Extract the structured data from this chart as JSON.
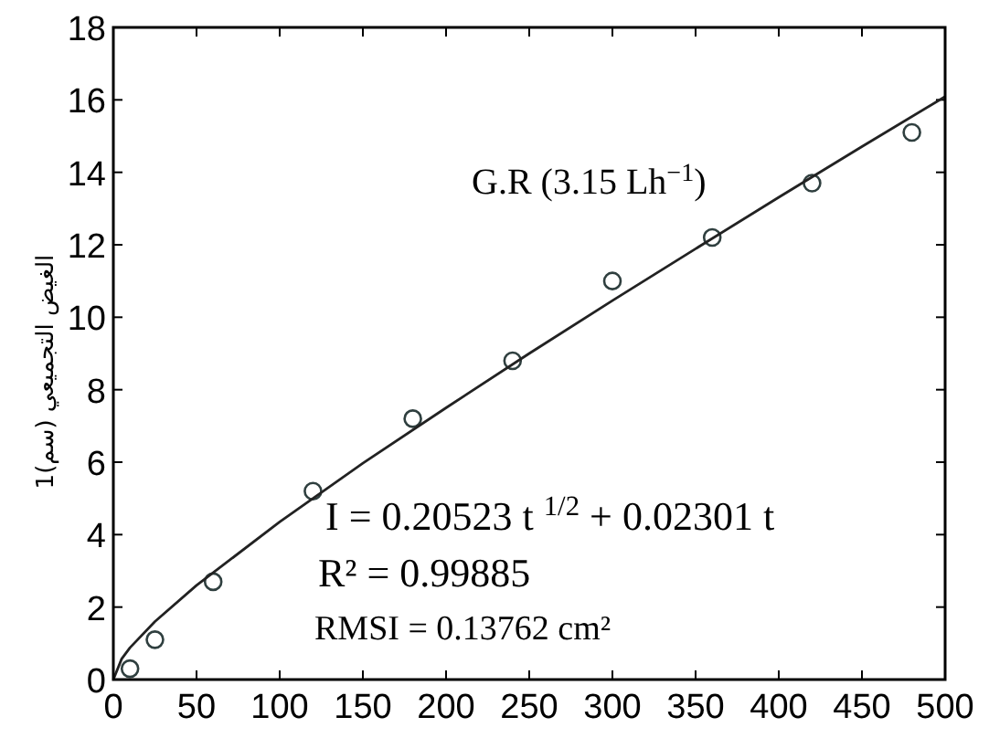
{
  "chart_data": {
    "type": "scatter",
    "ylabel": "الغيض التجميعي (سم)1",
    "xlim": [
      0,
      500
    ],
    "xticks": [
      0,
      50,
      100,
      150,
      200,
      250,
      300,
      350,
      400,
      450,
      500
    ],
    "ylim": [
      0,
      18
    ],
    "yticks": [
      0,
      2,
      4,
      6,
      8,
      10,
      12,
      14,
      16,
      18
    ],
    "grid": false,
    "series": [
      {
        "color": "#2f3f3f",
        "marker": "circle",
        "x": [
          10,
          25,
          60,
          120,
          180,
          240,
          300,
          360,
          420,
          480
        ],
        "values": [
          0.3,
          1.1,
          2.7,
          5.2,
          7.2,
          8.8,
          11.0,
          12.2,
          13.7,
          15.1
        ]
      },
      {
        "type": "line",
        "color": "#222222",
        "marker": "none",
        "x": [
          0,
          5,
          10,
          25,
          50,
          100,
          150,
          200,
          250,
          300,
          350,
          400,
          450,
          500
        ],
        "values": [
          0,
          0.57,
          0.88,
          1.6,
          2.6,
          4.35,
          5.97,
          7.5,
          9.0,
          10.46,
          11.89,
          13.31,
          14.71,
          16.09
        ]
      }
    ],
    "annotations": [
      "G.R (3.15 Lh$^{−1}$)",
      "I = 0.20523 t $^{1/2}$ + 0.02301 t",
      "R² = 0.99885",
      "RMSI = 0.13762 cm²"
    ]
  }
}
